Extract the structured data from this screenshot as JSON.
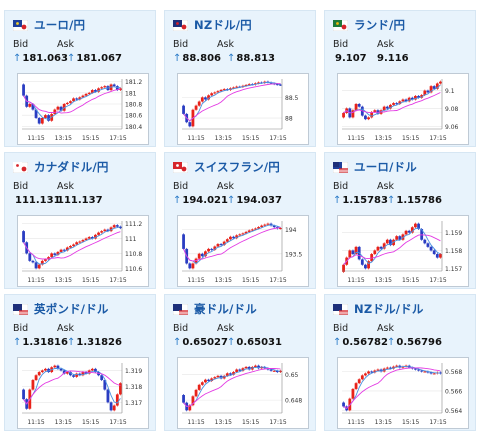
{
  "labels": {
    "bid": "Bid",
    "ask": "Ask",
    "up_arrow": "↑"
  },
  "colors": {
    "up": "#e8221a",
    "down": "#2a3dc2",
    "ma_short": "#4b92e0",
    "ma_long": "#e33be3",
    "title": "#1b5aa6",
    "card_bg": "#e8f3fc"
  },
  "cards": [
    {
      "name": "ユーロ/円",
      "flag": "eu-jp",
      "bid": "181.063",
      "ask": "181.067",
      "bid_up": true,
      "ask_up": true,
      "chart": {
        "yticks": [
          "181.2",
          "181",
          "180.8",
          "180.6",
          "180.4"
        ],
        "xticks": [
          "11:15",
          "13:15",
          "15:15",
          "17:15"
        ],
        "closes": [
          180.95,
          180.75,
          180.8,
          180.7,
          180.55,
          180.45,
          180.55,
          180.6,
          180.5,
          180.62,
          180.7,
          180.75,
          180.68,
          180.8,
          180.82,
          180.85,
          180.9,
          180.88,
          180.92,
          180.95,
          180.98,
          181.0,
          181.05,
          181.02,
          181.08,
          181.1,
          181.12,
          181.05,
          181.15,
          181.12,
          181.05,
          181.08
        ]
      }
    },
    {
      "name": "NZドル/円",
      "flag": "nz-jp",
      "bid": "88.806",
      "ask": "88.813",
      "bid_up": true,
      "ask_up": true,
      "chart": {
        "yticks": [
          "88.5",
          "88"
        ],
        "xticks": [
          "11:15",
          "13:15",
          "15:15",
          "17:15"
        ],
        "closes": [
          88.1,
          87.9,
          87.8,
          88.2,
          88.3,
          88.4,
          88.5,
          88.45,
          88.55,
          88.6,
          88.62,
          88.65,
          88.68,
          88.7,
          88.68,
          88.72,
          88.74,
          88.76,
          88.75,
          88.78,
          88.8,
          88.82,
          88.81,
          88.84,
          88.86,
          88.85,
          88.88,
          88.86,
          88.84,
          88.82,
          88.81,
          88.8
        ]
      }
    },
    {
      "name": "ランド/円",
      "flag": "za-jp",
      "bid": "9.107",
      "ask": "9.116",
      "bid_up": false,
      "ask_up": false,
      "chart": {
        "yticks": [
          "9.1",
          "9.08",
          "9.06"
        ],
        "xticks": [
          "11:15",
          "13:15",
          "15:15",
          "17:15"
        ],
        "closes": [
          9.075,
          9.08,
          9.07,
          9.078,
          9.085,
          9.082,
          9.072,
          9.068,
          9.07,
          9.076,
          9.078,
          9.074,
          9.078,
          9.082,
          9.08,
          9.084,
          9.086,
          9.085,
          9.088,
          9.09,
          9.088,
          9.092,
          9.09,
          9.094,
          9.092,
          9.095,
          9.1,
          9.098,
          9.105,
          9.102,
          9.108,
          9.11
        ]
      }
    },
    {
      "name": "カナダドル/円",
      "flag": "ca-jp",
      "bid": "111.131",
      "ask": "111.137",
      "bid_up": false,
      "ask_up": false,
      "chart": {
        "yticks": [
          "111.2",
          "111",
          "110.8",
          "110.6"
        ],
        "xticks": [
          "11:15",
          "13:15",
          "15:15",
          "17:15"
        ],
        "closes": [
          110.95,
          110.8,
          110.7,
          110.68,
          110.6,
          110.65,
          110.7,
          110.72,
          110.75,
          110.8,
          110.78,
          110.82,
          110.85,
          110.84,
          110.88,
          110.9,
          110.92,
          110.95,
          110.96,
          110.98,
          111.0,
          111.02,
          111.0,
          111.05,
          111.08,
          111.1,
          111.12,
          111.1,
          111.15,
          111.18,
          111.16,
          111.14
        ]
      }
    },
    {
      "name": "スイスフラン/円",
      "flag": "ch-jp",
      "bid": "194.021",
      "ask": "194.037",
      "bid_up": true,
      "ask_up": true,
      "chart": {
        "yticks": [
          "194",
          "193.5"
        ],
        "xticks": [
          "11:15",
          "13:15",
          "15:15",
          "17:15"
        ],
        "closes": [
          193.6,
          193.3,
          193.2,
          193.3,
          193.4,
          193.5,
          193.45,
          193.55,
          193.6,
          193.58,
          193.65,
          193.7,
          193.68,
          193.75,
          193.8,
          193.85,
          193.82,
          193.88,
          193.9,
          193.92,
          193.95,
          193.98,
          194.0,
          194.02,
          194.05,
          194.08,
          194.1,
          194.12,
          194.08,
          194.05,
          194.02,
          194.03
        ]
      }
    },
    {
      "name": "ユーロ/ドル",
      "flag": "eu-us",
      "bid": "1.15783",
      "ask": "1.15786",
      "bid_up": true,
      "ask_up": true,
      "chart": {
        "yticks": [
          "1.159",
          "1.158",
          "1.157"
        ],
        "xticks": [
          "11:15",
          "13:15",
          "15:15",
          "17:15"
        ],
        "closes": [
          1.1572,
          1.1576,
          1.158,
          1.1578,
          1.1582,
          1.1575,
          1.1572,
          1.157,
          1.1574,
          1.1578,
          1.158,
          1.1582,
          1.1581,
          1.1584,
          1.1586,
          1.1583,
          1.1586,
          1.1588,
          1.1586,
          1.1589,
          1.1591,
          1.159,
          1.1593,
          1.1595,
          1.1592,
          1.1586,
          1.1584,
          1.1582,
          1.158,
          1.1578,
          1.1576,
          1.1578
        ]
      }
    },
    {
      "name": "英ポンド/ドル",
      "flag": "gb-us",
      "bid": "1.31816",
      "ask": "1.31826",
      "bid_up": true,
      "ask_up": true,
      "chart": {
        "yticks": [
          "1.319",
          "1.318",
          "1.317"
        ],
        "xticks": [
          "11:15",
          "13:15",
          "15:15",
          "17:15"
        ],
        "closes": [
          1.3172,
          1.3166,
          1.3178,
          1.3184,
          1.3187,
          1.3189,
          1.319,
          1.3191,
          1.3189,
          1.3192,
          1.3193,
          1.3191,
          1.319,
          1.3188,
          1.3189,
          1.3187,
          1.3186,
          1.3188,
          1.3187,
          1.3189,
          1.3188,
          1.319,
          1.3191,
          1.3189,
          1.3187,
          1.3184,
          1.3178,
          1.317,
          1.3165,
          1.3168,
          1.3175,
          1.3182
        ]
      }
    },
    {
      "name": "豪ドル/ドル",
      "flag": "au-us",
      "bid": "0.65027",
      "ask": "0.65031",
      "bid_up": true,
      "ask_up": true,
      "chart": {
        "yticks": [
          "0.65",
          "0.648"
        ],
        "xticks": [
          "11:15",
          "13:15",
          "15:15",
          "17:15"
        ],
        "closes": [
          0.6478,
          0.6472,
          0.6476,
          0.6483,
          0.6488,
          0.6492,
          0.6494,
          0.6496,
          0.6495,
          0.6497,
          0.6498,
          0.6499,
          0.6497,
          0.6499,
          0.6501,
          0.65,
          0.6502,
          0.6504,
          0.6503,
          0.6505,
          0.6506,
          0.6504,
          0.6506,
          0.6507,
          0.6505,
          0.6506,
          0.6505,
          0.6504,
          0.6503,
          0.6503,
          0.6502,
          0.6503
        ]
      }
    },
    {
      "name": "NZドル/ドル",
      "flag": "nz-us",
      "bid": "0.56782",
      "ask": "0.56796",
      "bid_up": true,
      "ask_up": true,
      "chart": {
        "yticks": [
          "0.568",
          "0.566",
          "0.564"
        ],
        "xticks": [
          "11:15",
          "13:15",
          "15:15",
          "17:15"
        ],
        "closes": [
          0.5644,
          0.564,
          0.5652,
          0.5662,
          0.5668,
          0.5672,
          0.5676,
          0.5678,
          0.568,
          0.5679,
          0.5681,
          0.5682,
          0.568,
          0.5683,
          0.5684,
          0.5683,
          0.5685,
          0.5686,
          0.5684,
          0.5685,
          0.5686,
          0.5684,
          0.5683,
          0.5682,
          0.5681,
          0.568,
          0.568,
          0.5679,
          0.5678,
          0.5678,
          0.5679,
          0.5678
        ]
      }
    }
  ]
}
